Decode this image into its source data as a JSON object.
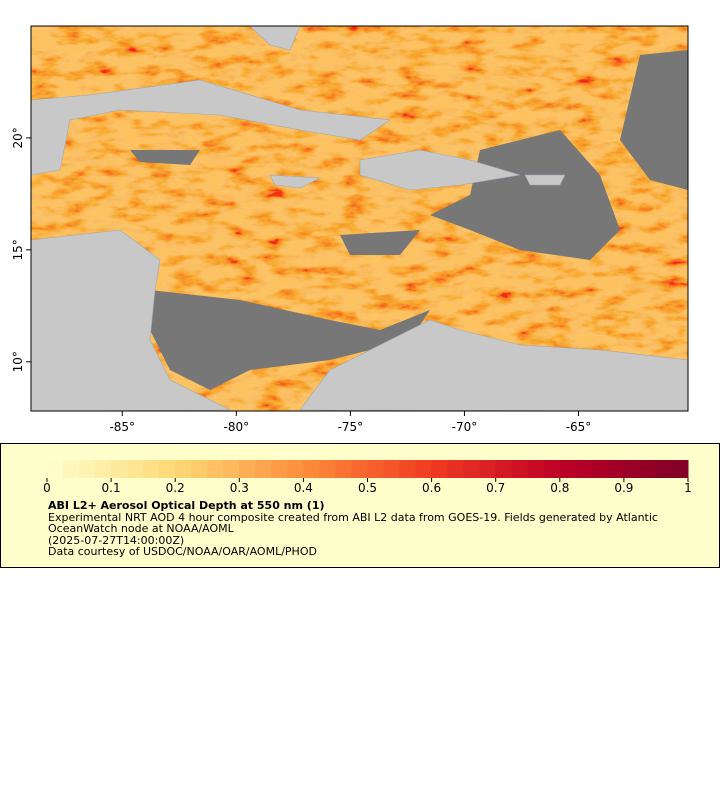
{
  "map": {
    "xlim": [
      -89,
      -60.2
    ],
    "ylim": [
      7.8,
      25
    ],
    "xticks": [
      {
        "value": -85,
        "label": "-85°"
      },
      {
        "value": -80,
        "label": "-80°"
      },
      {
        "value": -75,
        "label": "-75°"
      },
      {
        "value": -70,
        "label": "-70°"
      },
      {
        "value": -65,
        "label": "-65°"
      }
    ],
    "yticks": [
      {
        "value": 10,
        "label": "10°"
      },
      {
        "value": 15,
        "label": "15°"
      },
      {
        "value": 20,
        "label": "20°"
      }
    ]
  },
  "colorbar": {
    "lim": [
      0,
      1
    ],
    "ticks": [
      0,
      0.1,
      0.2,
      0.3,
      0.4,
      0.5,
      0.6,
      0.7,
      0.8,
      0.9,
      1
    ]
  },
  "legend": {
    "title": "ABI L2+ Aerosol Optical Depth at 550 nm (1)",
    "lines": [
      "Experimental NRT AOD 4 hour composite created from ABI L2 data from GOES-19. Fields generated by Atlantic OceanWatch node at NOAA/AOML",
      "(2025-07-27T14:00:00Z)",
      "Data courtesy of USDOC/NOAA/OAR/AOML/PHOD"
    ]
  }
}
